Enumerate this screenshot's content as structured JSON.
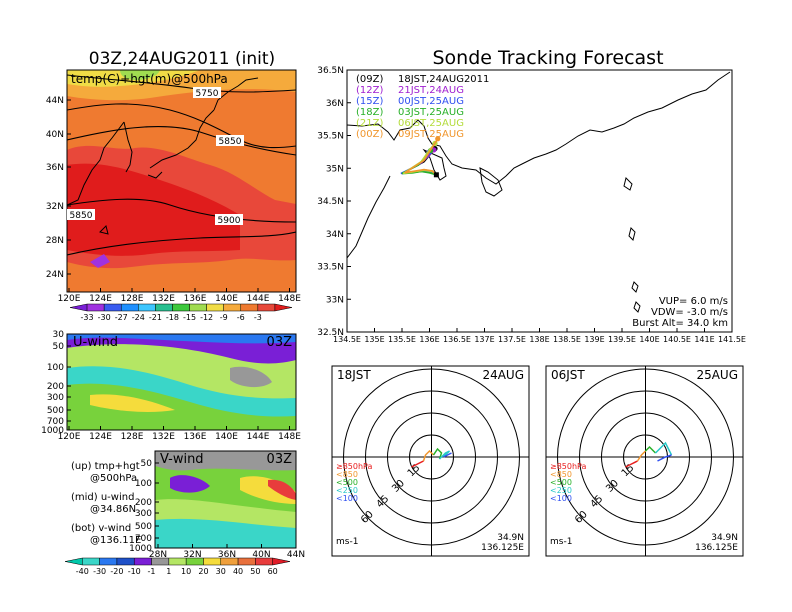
{
  "left_title": "03Z,24AUG2011 (init)",
  "right_title": "Sonde Tracking Forecast",
  "colors": {
    "temp": [
      "#7a1fd6",
      "#a032e0",
      "#3a5cf0",
      "#1e90ff",
      "#3cc6ff",
      "#28c090",
      "#3cc83c",
      "#a0dc50",
      "#f0dc46",
      "#f5aa3c",
      "#ef7a30",
      "#e8483a",
      "#e01c1c"
    ],
    "wind": [
      "#00c8aa",
      "#3ad6c8",
      "#2a78f0",
      "#1e50c8",
      "#7a1fd6",
      "#989898",
      "#b4e664",
      "#78d23c",
      "#f5dc3c",
      "#f0a03c",
      "#e8703c",
      "#e83c3c",
      "#e01c28"
    ],
    "tracks": [
      "#000000",
      "#a020d0",
      "#3050f0",
      "#28b028",
      "#b4dc3c",
      "#f0962d"
    ],
    "sonde_time_colors": [
      "#e81c1c",
      "#f0962d",
      "#28b028",
      "#28c8c8",
      "#3050f0"
    ]
  },
  "map_panel": {
    "label": "temp(C)+hgt(m)@500hPa",
    "contour_labels": [
      "5750",
      "5850",
      "5850",
      "5900"
    ],
    "lat_ticks": [
      "44N",
      "40N",
      "36N",
      "32N",
      "28N",
      "24N"
    ],
    "lon_ticks": [
      "120E",
      "124E",
      "128E",
      "132E",
      "136E",
      "140E",
      "144E",
      "148E"
    ],
    "colorbar_labels": [
      "-33",
      "-30",
      "-27",
      "-24",
      "-21",
      "-18",
      "-15",
      "-12",
      "-9",
      "-6",
      "-3"
    ]
  },
  "uwind_panel": {
    "label": "U-wind",
    "time": "03Z",
    "y_ticks": [
      "30",
      "50",
      "100",
      "200",
      "300",
      "500",
      "700",
      "1000"
    ],
    "x_ticks": [
      "120E",
      "124E",
      "128E",
      "132E",
      "136E",
      "140E",
      "144E",
      "148E"
    ]
  },
  "vwind_panel": {
    "label": "V-wind",
    "time": "03Z",
    "y_ticks": [
      "50",
      "100",
      "200",
      "300",
      "500",
      "700",
      "1000"
    ],
    "x_ticks": [
      "28N",
      "32N",
      "36N",
      "40N",
      "44N"
    ],
    "colorbar_labels": [
      "-40",
      "-30",
      "-20",
      "-10",
      "-1",
      "1",
      "10",
      "20",
      "30",
      "40",
      "50",
      "60"
    ]
  },
  "legend_notes": {
    "line1a": "(up) tmp+hgt",
    "line1b": "@500hPa",
    "line2a": "(mid) u-wind",
    "line2b": "@34.86N",
    "line3a": "(bot) v-wind",
    "line3b": "@136.11E"
  },
  "track_legend": [
    {
      "code": "(09Z)",
      "text": "18JST,24AUG2011"
    },
    {
      "code": "(12Z)",
      "text": "21JST,24AUG"
    },
    {
      "code": "(15Z)",
      "text": "00JST,25AUG"
    },
    {
      "code": "(18Z)",
      "text": "03JST,25AUG"
    },
    {
      "code": "(21Z)",
      "text": "06JST,25AUG"
    },
    {
      "code": "(00Z)",
      "text": "09JST,25AUG"
    }
  ],
  "track_params": {
    "vup": "VUP=  6.0  m/s",
    "vdw": "VDW= -3.0  m/s",
    "burst": "Burst Alt= 34.0  km"
  },
  "track_map": {
    "lat_ticks": [
      "36.5N",
      "36N",
      "35.5N",
      "35N",
      "34.5N",
      "34N",
      "33.5N",
      "33N",
      "32.5N"
    ],
    "lon_ticks": [
      "134.5E",
      "135E",
      "135.5E",
      "136E",
      "136.5E",
      "137E",
      "137.5E",
      "138E",
      "138.5E",
      "139E",
      "139.5E",
      "140E",
      "140.5E",
      "141E",
      "141.5E"
    ]
  },
  "hodo_left": {
    "time": "18JST",
    "date": "24AUG",
    "lat": "34.9N",
    "lon": "136.125E",
    "units": "ms-1",
    "rings": [
      "15",
      "30",
      "45",
      "60"
    ]
  },
  "hodo_right": {
    "time": "06JST",
    "date": "25AUG",
    "lat": "34.9N",
    "lon": "136.125E",
    "units": "ms-1",
    "rings": [
      "15",
      "30",
      "45",
      "60"
    ]
  },
  "hodo_levels": [
    "≥850hPa",
    "<850",
    "<500",
    "<250",
    "<100"
  ],
  "chart_data": [
    {
      "type": "heatmap",
      "title": "03Z,24AUG2011 (init)",
      "variable": "temp(C)+hgt(m)@500hPa",
      "x_range": [
        "120E",
        "150E"
      ],
      "y_range": [
        "22N",
        "47N"
      ],
      "color_levels": [
        -33,
        -30,
        -27,
        -24,
        -21,
        -18,
        -15,
        -12,
        -9,
        -6,
        -3
      ],
      "height_contours": [
        5750,
        5850,
        5900
      ]
    },
    {
      "type": "heatmap",
      "title": "U-wind",
      "x_range": [
        "120E",
        "150E"
      ],
      "y_axis": "pressure (hPa)",
      "y_ticks": [
        30,
        50,
        100,
        200,
        300,
        500,
        700,
        1000
      ],
      "color_levels": [
        -40,
        -30,
        -20,
        -10,
        -1,
        1,
        10,
        20,
        30,
        40,
        50,
        60
      ]
    },
    {
      "type": "heatmap",
      "title": "V-wind",
      "x_range": [
        "28N",
        "44N"
      ],
      "y_axis": "pressure (hPa)",
      "y_ticks": [
        50,
        100,
        200,
        300,
        500,
        700,
        1000
      ],
      "color_levels": [
        -40,
        -30,
        -20,
        -10,
        -1,
        1,
        10,
        20,
        30,
        40,
        50,
        60
      ]
    },
    {
      "type": "line",
      "title": "Sonde Tracking Forecast",
      "xlim": [
        134.5,
        141.5
      ],
      "ylim": [
        32.5,
        36.5
      ],
      "launch": {
        "lon": 136.125,
        "lat": 34.9
      },
      "series": [
        {
          "name": "(09Z) 18JST,24AUG2011",
          "x": [
            136.125,
            136.05,
            135.95,
            135.85,
            135.7,
            135.6,
            135.5,
            135.9,
            136.05,
            136.1
          ],
          "y": [
            34.9,
            34.95,
            34.97,
            34.95,
            34.94,
            34.93,
            34.92,
            35.1,
            35.25,
            35.3
          ]
        },
        {
          "name": "(12Z) 21JST,24AUG",
          "x": [
            136.125,
            136.0,
            135.85,
            135.7,
            135.55,
            135.5,
            135.85,
            136.0,
            136.08
          ],
          "y": [
            34.9,
            34.95,
            34.96,
            34.94,
            34.93,
            34.92,
            35.08,
            35.2,
            35.28
          ]
        },
        {
          "name": "(15Z) 00JST,25AUG",
          "x": [
            136.125,
            136.0,
            135.85,
            135.7,
            135.55,
            135.48,
            135.8,
            135.95,
            136.0
          ],
          "y": [
            34.9,
            34.95,
            34.96,
            34.94,
            34.93,
            34.92,
            35.05,
            35.17,
            35.25
          ]
        },
        {
          "name": "(18Z) 03JST,25AUG",
          "x": [
            136.125,
            136.0,
            135.85,
            135.7,
            135.55,
            135.5,
            135.8,
            135.95,
            136.02
          ],
          "y": [
            34.9,
            34.93,
            34.95,
            34.93,
            34.92,
            34.92,
            35.05,
            35.2,
            35.27
          ]
        },
        {
          "name": "(21Z) 06JST,25AUG",
          "x": [
            136.125,
            136.05,
            135.9,
            135.75,
            135.6,
            135.52,
            135.85,
            136.0,
            136.1
          ],
          "y": [
            34.9,
            34.95,
            34.97,
            34.95,
            34.93,
            34.92,
            35.1,
            35.28,
            35.38
          ]
        },
        {
          "name": "(00Z) 09JST,25AUG",
          "x": [
            136.125,
            136.05,
            135.9,
            135.75,
            135.6,
            135.55,
            135.9,
            136.05,
            136.15
          ],
          "y": [
            34.9,
            34.96,
            34.98,
            34.96,
            34.94,
            34.93,
            35.12,
            35.32,
            35.45
          ]
        }
      ]
    }
  ]
}
